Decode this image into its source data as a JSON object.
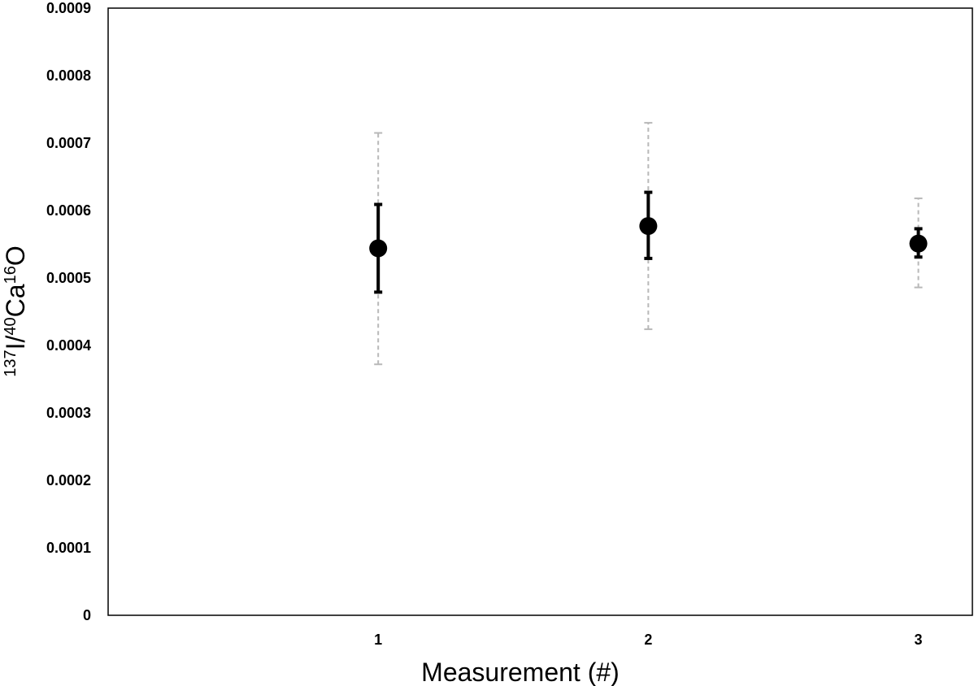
{
  "chart_data": {
    "type": "scatter",
    "title": "",
    "xlabel": "Measurement (#)",
    "ylabel": {
      "text": "137I/40Ca16O",
      "parts": [
        {
          "text": "137",
          "sup": true
        },
        {
          "text": "I/",
          "sup": false
        },
        {
          "text": "40",
          "sup": true
        },
        {
          "text": "Ca",
          "sup": false
        },
        {
          "text": "16",
          "sup": true
        },
        {
          "text": "O",
          "sup": false
        }
      ]
    },
    "xlim": [
      0,
      3.2
    ],
    "ylim": [
      0,
      0.0009
    ],
    "x_ticks": [
      "1",
      "2",
      "3"
    ],
    "y_ticks": [
      "0",
      "0.0001",
      "0.0002",
      "0.0003",
      "0.0004",
      "0.0005",
      "0.0006",
      "0.0007",
      "0.0008",
      "0.0009"
    ],
    "grid": false,
    "legend": "none",
    "colors": {
      "marker": "#000000",
      "inner_error": "#000000",
      "outer_error": "#b8b8b8"
    },
    "points": [
      {
        "x": 1,
        "y": 0.000544,
        "inner_err": [
          0.000479,
          0.000609
        ],
        "outer_err": [
          0.000372,
          0.000715
        ]
      },
      {
        "x": 2,
        "y": 0.000577,
        "inner_err": [
          0.000529,
          0.000627
        ],
        "outer_err": [
          0.000424,
          0.00073
        ]
      },
      {
        "x": 3,
        "y": 0.000551,
        "inner_err": [
          0.000531,
          0.000573
        ],
        "outer_err": [
          0.000486,
          0.000618
        ]
      }
    ]
  }
}
